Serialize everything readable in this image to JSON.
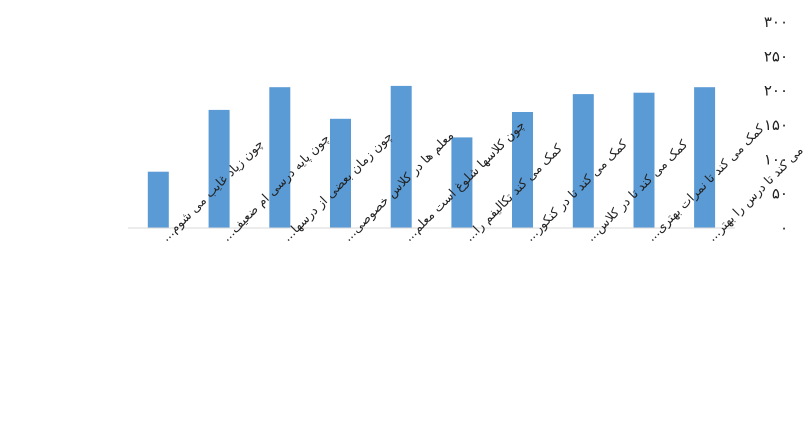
{
  "chart_data": {
    "type": "bar",
    "title": "",
    "xlabel": "",
    "ylabel": "",
    "ylim": [
      0,
      300
    ],
    "y_ticks": [
      0,
      50,
      100,
      150,
      200,
      250,
      300
    ],
    "y_tick_labels": [
      "٠",
      "۵٠",
      "١٠٠",
      "١۵٠",
      "٢٠٠",
      "٢۵٠",
      "٣٠٠"
    ],
    "y_axis_position": "right",
    "grid": false,
    "legend": "none",
    "bar_color": "#5b9bd5",
    "categories": [
      "چون زیاد غایب می شوم...",
      "چون پایه درسی ام ضعیف...",
      "چون زمان بعضی از درسها...",
      "معلم ها در کلاس خصوصی...",
      "چون کلاسها شلوغ است معلم...",
      "کمک می کند تکالیفم را...",
      "کمک می کند تا در کنکور...",
      "کمک می کند تا در کلاس...",
      "کمک می کند تا نمرات بهتری...",
      "کمک می کند تا درس را بهتر..."
    ],
    "values": [
      82,
      172,
      205,
      159,
      207,
      132,
      169,
      195,
      197,
      205
    ]
  }
}
